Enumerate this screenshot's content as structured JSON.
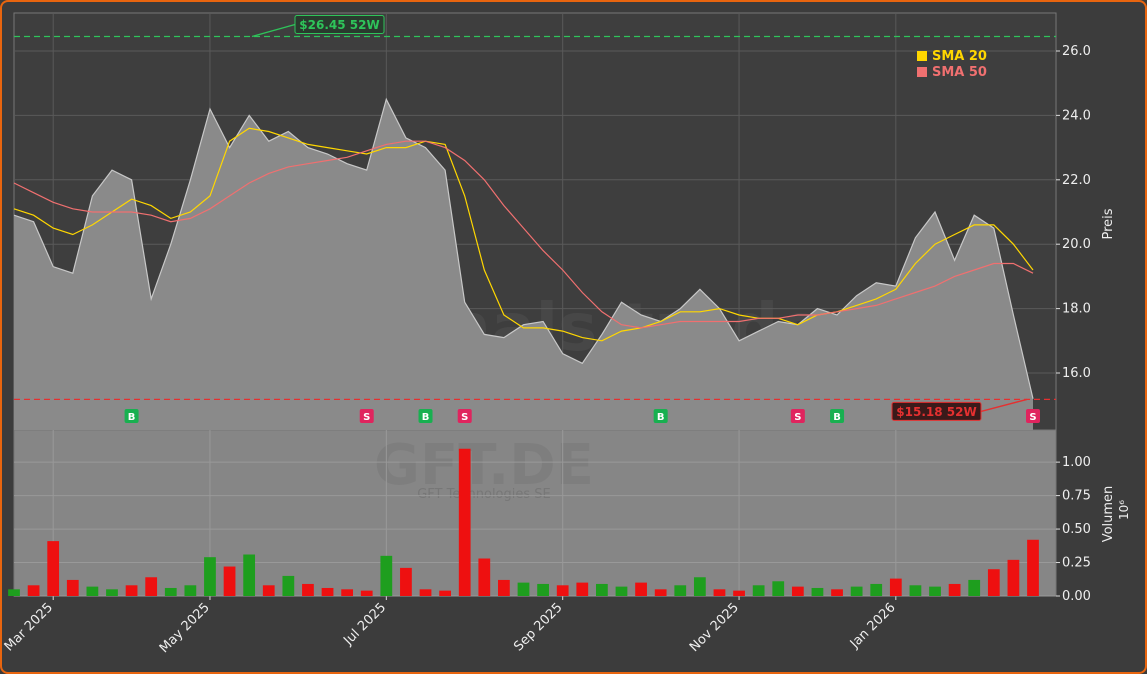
{
  "chart_data": {
    "type": "line",
    "categories": [
      null,
      null,
      "Mar 2025",
      null,
      null,
      null,
      null,
      null,
      null,
      null,
      "May 2025",
      null,
      null,
      null,
      null,
      null,
      null,
      null,
      null,
      "Jul 2025",
      null,
      null,
      null,
      null,
      null,
      null,
      null,
      null,
      "Sep 2025",
      null,
      null,
      null,
      null,
      null,
      null,
      null,
      null,
      "Nov 2025",
      null,
      null,
      null,
      null,
      null,
      null,
      null,
      "Jan 2026",
      null,
      null,
      null,
      null,
      null,
      null,
      null
    ],
    "values": [
      20.9,
      20.7,
      19.3,
      19.1,
      21.5,
      22.3,
      22.0,
      18.3,
      20.0,
      22.0,
      24.2,
      23.0,
      24.0,
      23.2,
      23.5,
      23.0,
      22.8,
      22.5,
      22.3,
      24.5,
      23.3,
      23.0,
      22.3,
      18.2,
      17.2,
      17.1,
      17.5,
      17.6,
      16.6,
      16.3,
      17.2,
      18.2,
      17.8,
      17.6,
      18.0,
      18.6,
      18.0,
      17.0,
      17.3,
      17.6,
      17.5,
      18.0,
      17.8,
      18.4,
      18.8,
      18.7,
      20.2,
      21.0,
      19.5,
      20.9,
      20.5,
      17.8,
      15.2
    ],
    "color": "#c8c8c8",
    "series": [
      {
        "name": "SMA 20",
        "color": "#ffd700",
        "values": [
          21.1,
          20.9,
          20.5,
          20.3,
          20.6,
          21.0,
          21.4,
          21.2,
          20.8,
          21.0,
          21.5,
          23.2,
          23.6,
          23.5,
          23.3,
          23.1,
          23.0,
          22.9,
          22.8,
          23.0,
          23.0,
          23.2,
          23.1,
          21.5,
          19.2,
          17.8,
          17.4,
          17.4,
          17.3,
          17.1,
          17.0,
          17.3,
          17.4,
          17.6,
          17.9,
          17.9,
          18.0,
          17.8,
          17.7,
          17.7,
          17.5,
          17.8,
          17.9,
          18.1,
          18.3,
          18.6,
          19.4,
          20.0,
          20.3,
          20.6,
          20.6,
          20.0,
          19.2
        ]
      },
      {
        "name": "SMA 50",
        "color": "#f07070",
        "values": [
          21.9,
          21.6,
          21.3,
          21.1,
          21.0,
          21.0,
          21.0,
          20.9,
          20.7,
          20.8,
          21.1,
          21.5,
          21.9,
          22.2,
          22.4,
          22.5,
          22.6,
          22.7,
          22.9,
          23.1,
          23.2,
          23.2,
          23.0,
          22.6,
          22.0,
          21.2,
          20.5,
          19.8,
          19.2,
          18.5,
          17.9,
          17.5,
          17.4,
          17.5,
          17.6,
          17.6,
          17.6,
          17.6,
          17.7,
          17.7,
          17.8,
          17.8,
          17.9,
          18.0,
          18.1,
          18.3,
          18.5,
          18.7,
          19.0,
          19.2,
          19.4,
          19.4,
          19.1
        ]
      }
    ],
    "ylabel": "Preis",
    "ylim": [
      14.23,
      27.18
    ],
    "yticks": [
      {
        "value": 16,
        "label": "16.0"
      },
      {
        "value": 18,
        "label": "18.0"
      },
      {
        "value": 20,
        "label": "20.0"
      },
      {
        "value": 22,
        "label": "22.0"
      },
      {
        "value": 24,
        "label": "24.0"
      },
      {
        "value": 26,
        "label": "26.0"
      }
    ],
    "grid": true,
    "legend": "upper right",
    "annotations": [
      {
        "value": 26.45,
        "label": "$26.45 52W",
        "color": "#2ec45a"
      },
      {
        "value": 15.18,
        "label": "$15.18 52W",
        "color": "#e53030"
      }
    ],
    "signals": [
      {
        "label": "B",
        "at": 6,
        "color": "#18b050"
      },
      {
        "label": "S",
        "at": 18,
        "color": "#e0245e"
      },
      {
        "label": "B",
        "at": 21,
        "color": "#18b050"
      },
      {
        "label": "S",
        "at": 23,
        "color": "#e0245e"
      },
      {
        "label": "B",
        "at": 33,
        "color": "#18b050"
      },
      {
        "label": "S",
        "at": 40,
        "color": "#e0245e"
      },
      {
        "label": "B",
        "at": 42,
        "color": "#18b050"
      },
      {
        "label": "S",
        "at": 52,
        "color": "#e0245e"
      }
    ],
    "watermark": {
      "site": "forexsignals.trade",
      "symbol": "GFT.DE",
      "company": "GFT Technologies SE"
    },
    "volume": {
      "ylabel": "Volumen",
      "unit": "10⁶",
      "up_color": "#1e9e1e",
      "down_color": "#ee1010",
      "values": [
        0.05,
        0.08,
        0.41,
        0.12,
        0.07,
        0.05,
        0.08,
        0.14,
        0.06,
        0.08,
        0.29,
        0.22,
        0.31,
        0.08,
        0.15,
        0.09,
        0.06,
        0.05,
        0.04,
        0.3,
        0.21,
        0.05,
        0.04,
        1.1,
        0.28,
        0.12,
        0.1,
        0.09,
        0.08,
        0.1,
        0.09,
        0.07,
        0.1,
        0.05,
        0.08,
        0.14,
        0.05,
        0.04,
        0.08,
        0.11,
        0.07,
        0.06,
        0.05,
        0.07,
        0.09,
        0.13,
        0.08,
        0.07,
        0.09,
        0.12,
        0.2,
        0.27,
        0.42
      ],
      "ylim": [
        0,
        1.24
      ],
      "yticks": [
        {
          "value": 0,
          "label": "0.00"
        },
        0.25,
        {
          "value": 0.5,
          "label": "0.50"
        },
        0.75,
        {
          "value": 1,
          "label": "1.00"
        }
      ]
    }
  }
}
